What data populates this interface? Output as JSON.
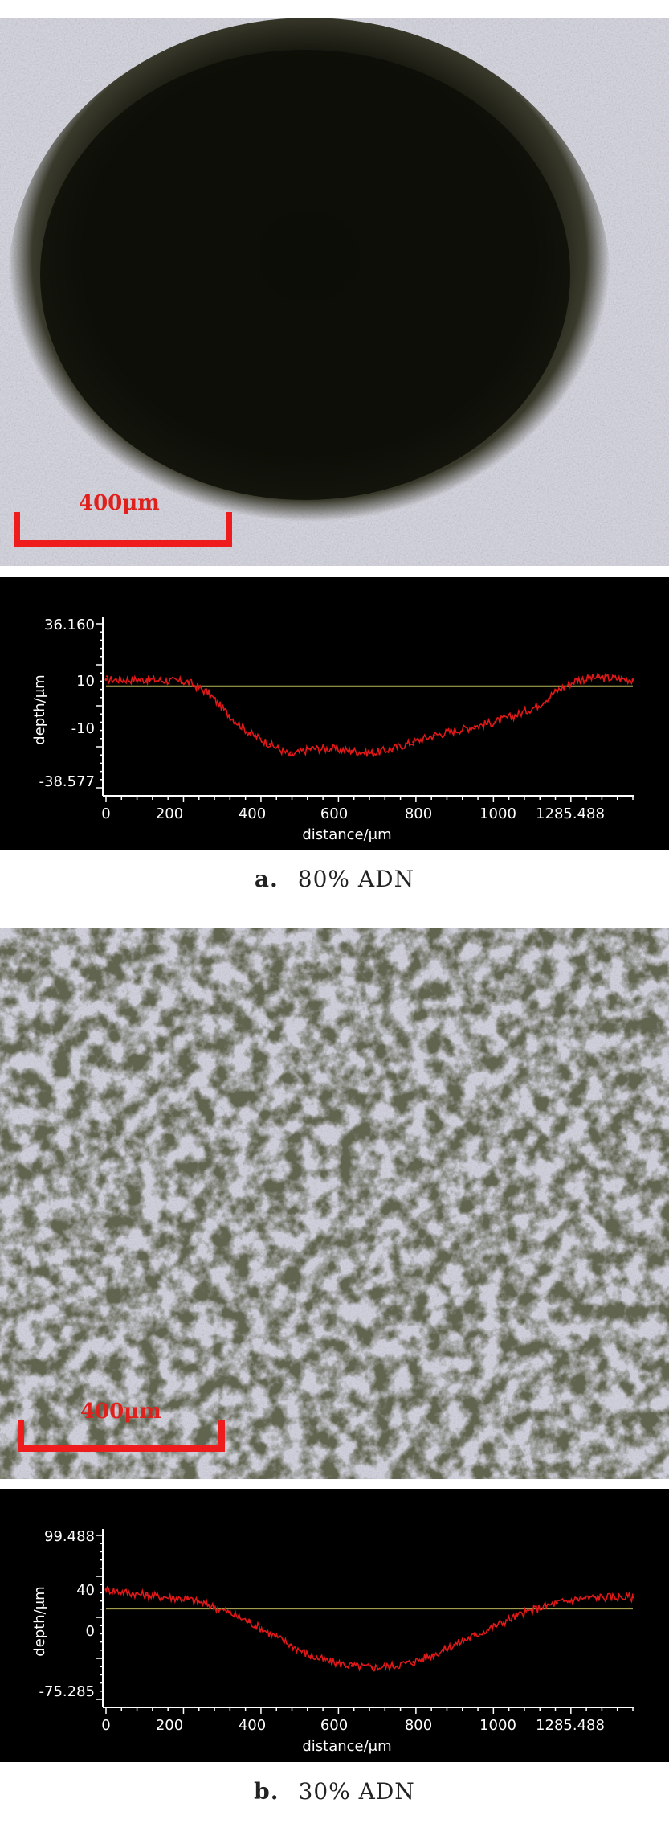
{
  "figures": [
    {
      "caption_tag": "a.",
      "caption_text": "80% ADN",
      "micrograph": {
        "scale_bar_label": "400μm",
        "appearance": "dark-crater"
      },
      "profile": {
        "ylabel": "depth/μm",
        "xlabel": "distance/μm",
        "ytick_labels": [
          "36.160",
          "10",
          "-10",
          "-38.577"
        ],
        "xtick_labels": [
          "0",
          "200",
          "400",
          "600",
          "800",
          "1000",
          "1285.488"
        ]
      }
    },
    {
      "caption_tag": "b.",
      "caption_text": "30% ADN",
      "micrograph": {
        "scale_bar_label": "400μm",
        "appearance": "bright-rough"
      },
      "profile": {
        "ylabel": "depth/μm",
        "xlabel": "distance/μm",
        "ytick_labels": [
          "99.488",
          "40",
          "0",
          "-75.285"
        ],
        "xtick_labels": [
          "0",
          "200",
          "400",
          "600",
          "800",
          "1000",
          "1285.488"
        ]
      }
    }
  ],
  "chart_data": [
    {
      "type": "line",
      "title": "",
      "xlabel": "distance/μm",
      "ylabel": "depth/μm",
      "xlim": [
        0,
        1285.488
      ],
      "ylim": [
        -38.577,
        36.16
      ],
      "reference_level": 7,
      "x": [
        0,
        100,
        200,
        250,
        300,
        350,
        400,
        450,
        500,
        550,
        600,
        650,
        700,
        750,
        800,
        850,
        900,
        950,
        1000,
        1050,
        1100,
        1150,
        1200,
        1285.488
      ],
      "y": [
        10,
        10,
        9,
        4,
        -6,
        -14,
        -19,
        -24,
        -21,
        -21,
        -22,
        -23,
        -21,
        -18,
        -15,
        -13,
        -11,
        -9,
        -6,
        -2,
        5,
        10,
        11,
        10
      ]
    },
    {
      "type": "line",
      "title": "",
      "xlabel": "distance/μm",
      "ylabel": "depth/μm",
      "xlim": [
        0,
        1285.488
      ],
      "ylim": [
        -75.285,
        99.488
      ],
      "reference_level": 20,
      "x": [
        0,
        100,
        200,
        250,
        300,
        350,
        400,
        450,
        500,
        550,
        600,
        650,
        700,
        750,
        800,
        850,
        900,
        950,
        1000,
        1050,
        1100,
        1150,
        1200,
        1285.488
      ],
      "y": [
        40,
        34,
        30,
        24,
        16,
        6,
        -6,
        -18,
        -30,
        -36,
        -40,
        -42,
        -40,
        -36,
        -28,
        -18,
        -8,
        2,
        12,
        20,
        26,
        30,
        32,
        32
      ]
    }
  ],
  "colors": {
    "profile_line": "#e01818",
    "reference_line": "#b9b35a",
    "axis": "#ffffff",
    "scale_bar": "#ee1c1c"
  }
}
